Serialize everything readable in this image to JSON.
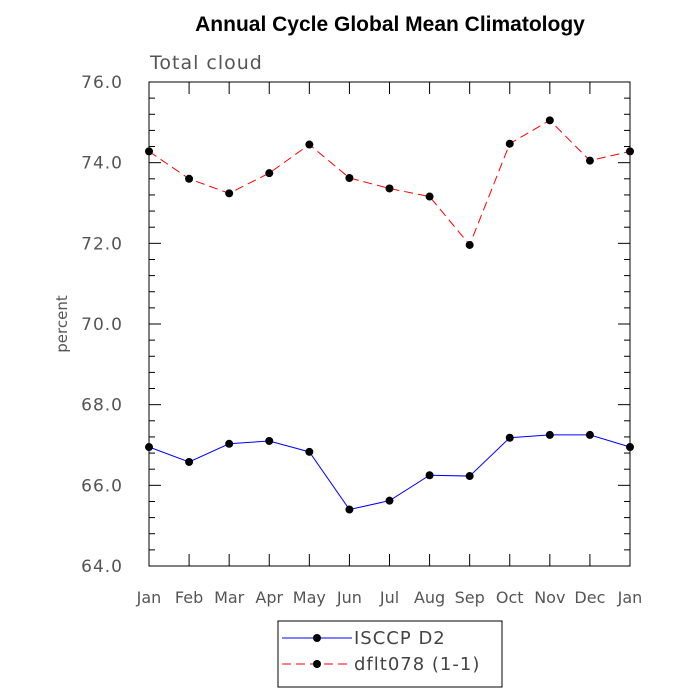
{
  "chart_data": {
    "type": "line",
    "title": "Annual Cycle Global Mean Climatology",
    "subtitle": "Total cloud",
    "xlabel": "",
    "ylabel": "percent",
    "ylim": [
      64.0,
      76.0
    ],
    "yticks": [
      "64.0",
      "66.0",
      "68.0",
      "70.0",
      "72.0",
      "74.0",
      "76.0"
    ],
    "categories": [
      "Jan",
      "Feb",
      "Mar",
      "Apr",
      "May",
      "Jun",
      "Jul",
      "Aug",
      "Sep",
      "Oct",
      "Nov",
      "Dec",
      "Jan"
    ],
    "series": [
      {
        "name": "ISCCP D2",
        "color": "#0000ff",
        "dash": "solid",
        "values": [
          66.95,
          66.58,
          67.03,
          67.1,
          66.83,
          65.4,
          65.62,
          66.25,
          66.23,
          67.18,
          67.25,
          67.25,
          66.95
        ]
      },
      {
        "name": "dflt078 (1-1)",
        "color": "#ff0000",
        "dash": "dashed",
        "values": [
          74.28,
          73.6,
          73.24,
          73.74,
          74.45,
          73.62,
          73.36,
          73.16,
          71.96,
          74.47,
          75.05,
          74.05,
          74.28
        ]
      }
    ],
    "legend_position": "bottom-center"
  }
}
